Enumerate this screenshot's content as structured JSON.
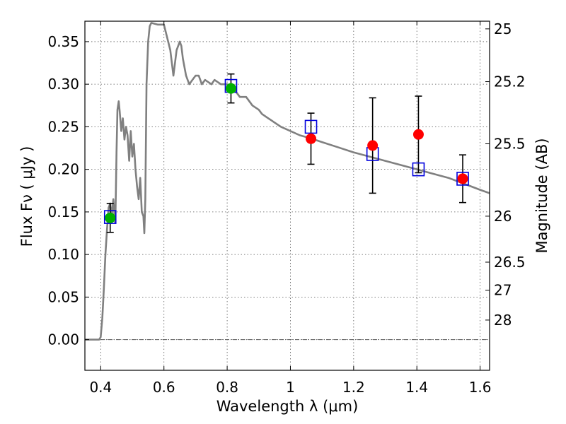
{
  "chart_data": {
    "type": "scatter",
    "title": "",
    "xlabel": "Wavelength  λ (μm)",
    "ylabel": "Flux  Fν  ( μJy )",
    "y2label": "Magnitude (AB)",
    "xlim": [
      0.35,
      1.63
    ],
    "ylim": [
      -0.036,
      0.374
    ],
    "xticks": [
      0.4,
      0.6,
      0.8,
      1.0,
      1.2,
      1.4,
      1.6
    ],
    "xtick_labels": [
      "0.4",
      "0.6",
      "0.8",
      "1",
      "1.2",
      "1.4",
      "1.6"
    ],
    "yticks": [
      0.0,
      0.05,
      0.1,
      0.15,
      0.2,
      0.25,
      0.3,
      0.35
    ],
    "ytick_labels": [
      "0.00",
      "0.05",
      "0.10",
      "0.15",
      "0.20",
      "0.25",
      "0.30",
      "0.35"
    ],
    "y2ticks": [
      {
        "label": "25",
        "flux": 0.365
      },
      {
        "label": "25.2",
        "flux": 0.303
      },
      {
        "label": "25.5",
        "flux": 0.23
      },
      {
        "label": "26",
        "flux": 0.145
      },
      {
        "label": "26.5",
        "flux": 0.091
      },
      {
        "label": "27",
        "flux": 0.058
      },
      {
        "label": "28",
        "flux": 0.023
      }
    ],
    "grid": true,
    "colors": {
      "model": "#808080",
      "detection_green": "#00b000",
      "detection_red": "#ff0000",
      "model_box": "#0000dd",
      "errorbar": "#000000",
      "zero_line": "#555555"
    },
    "series": [
      {
        "type": "line",
        "x": [
          0.35,
          0.395,
          0.4,
          0.405,
          0.41,
          0.415,
          0.42,
          0.425,
          0.43,
          0.435,
          0.44,
          0.442,
          0.445,
          0.447,
          0.45,
          0.453,
          0.457,
          0.46,
          0.465,
          0.47,
          0.475,
          0.48,
          0.485,
          0.49,
          0.495,
          0.5,
          0.505,
          0.51,
          0.515,
          0.52,
          0.525,
          0.53,
          0.535,
          0.538,
          0.541,
          0.545,
          0.55,
          0.555,
          0.56,
          0.58,
          0.6,
          0.62,
          0.63,
          0.64,
          0.65,
          0.655,
          0.66,
          0.67,
          0.68,
          0.69,
          0.7,
          0.71,
          0.72,
          0.73,
          0.75,
          0.76,
          0.78,
          0.8,
          0.81,
          0.82,
          0.83,
          0.84,
          0.85,
          0.86,
          0.87,
          0.88,
          0.9,
          0.91,
          0.93,
          0.95,
          0.97,
          1.0,
          1.03,
          1.06,
          1.1,
          1.15,
          1.2,
          1.25,
          1.3,
          1.35,
          1.4,
          1.45,
          1.5,
          1.55,
          1.6,
          1.63
        ],
        "values": [
          0.0,
          0.0,
          0.003,
          0.025,
          0.06,
          0.1,
          0.13,
          0.155,
          0.16,
          0.145,
          0.165,
          0.155,
          0.138,
          0.15,
          0.22,
          0.27,
          0.28,
          0.268,
          0.245,
          0.26,
          0.235,
          0.25,
          0.24,
          0.21,
          0.245,
          0.215,
          0.23,
          0.2,
          0.18,
          0.165,
          0.19,
          0.15,
          0.145,
          0.125,
          0.165,
          0.3,
          0.35,
          0.368,
          0.372,
          0.37,
          0.37,
          0.34,
          0.31,
          0.34,
          0.35,
          0.345,
          0.33,
          0.31,
          0.3,
          0.305,
          0.31,
          0.31,
          0.3,
          0.305,
          0.3,
          0.305,
          0.3,
          0.3,
          0.295,
          0.295,
          0.29,
          0.285,
          0.285,
          0.285,
          0.28,
          0.275,
          0.27,
          0.265,
          0.26,
          0.255,
          0.25,
          0.245,
          0.24,
          0.237,
          0.232,
          0.226,
          0.22,
          0.215,
          0.21,
          0.205,
          0.2,
          0.195,
          0.19,
          0.183,
          0.176,
          0.172
        ]
      },
      {
        "type": "errorbar",
        "points": [
          {
            "x": 0.43,
            "y": 0.143,
            "yerr": 0.017,
            "color": "green"
          },
          {
            "x": 0.812,
            "y": 0.295,
            "yerr": 0.017,
            "color": "green"
          },
          {
            "x": 1.065,
            "y": 0.236,
            "yerr": 0.03,
            "color": "red"
          },
          {
            "x": 1.26,
            "y": 0.228,
            "yerr": 0.056,
            "color": "red"
          },
          {
            "x": 1.405,
            "y": 0.241,
            "yerr": 0.045,
            "color": "red"
          },
          {
            "x": 1.545,
            "y": 0.189,
            "yerr": 0.028,
            "color": "red"
          }
        ]
      },
      {
        "type": "model-box",
        "points": [
          {
            "x": 0.43,
            "y": 0.144
          },
          {
            "x": 0.812,
            "y": 0.298
          },
          {
            "x": 1.065,
            "y": 0.25
          },
          {
            "x": 1.26,
            "y": 0.218
          },
          {
            "x": 1.405,
            "y": 0.2
          },
          {
            "x": 1.545,
            "y": 0.189
          }
        ]
      }
    ]
  }
}
